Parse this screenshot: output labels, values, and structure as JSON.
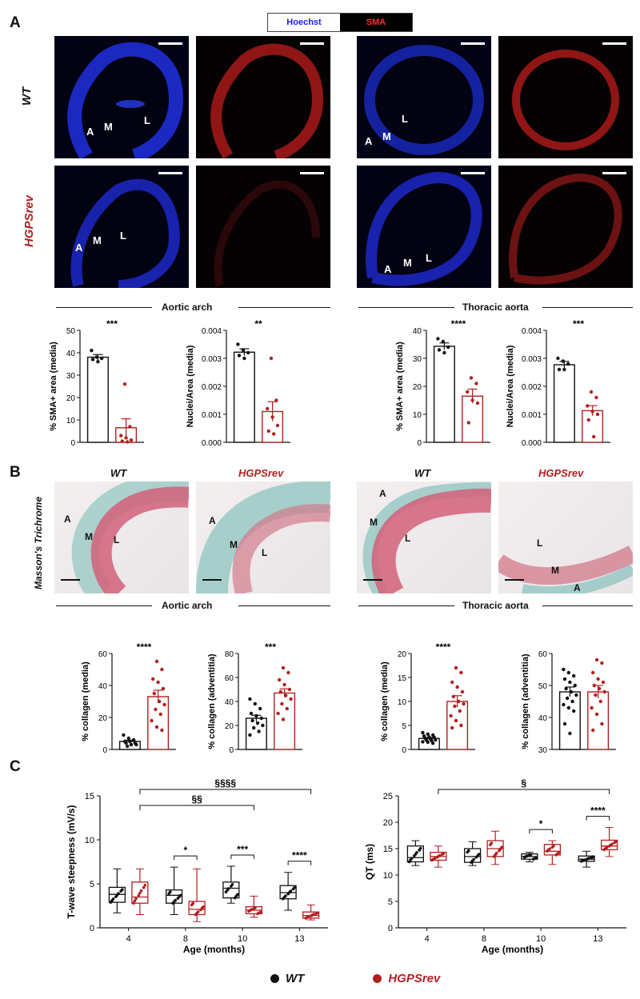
{
  "panelA": {
    "letter": "A",
    "legend": {
      "hoechst": "Hoechst",
      "sma": "SMA"
    },
    "rows": {
      "wt": "WT",
      "hgps": "HGPSrev"
    },
    "layer_labels": {
      "a": "A",
      "m": "M",
      "l": "L"
    },
    "regions": {
      "arch": "Aortic arch",
      "thoracic": "Thoracic aorta"
    },
    "charts": [
      {
        "type": "bar",
        "ylabel": "% SMA+ area (media)",
        "ylim": [
          0,
          50
        ],
        "ticks": [
          "0",
          "10",
          "20",
          "30",
          "40",
          "50"
        ],
        "sig": "***",
        "series": [
          {
            "name": "WT",
            "mean": 38,
            "sem": 1.2,
            "points": [
              41,
              38,
              37.5,
              37,
              36
            ]
          },
          {
            "name": "HGPSrev",
            "mean": 6.5,
            "sem": 4,
            "points": [
              26,
              7,
              3,
              2,
              1,
              0.5,
              0.2
            ]
          }
        ]
      },
      {
        "type": "bar",
        "ylabel": "Nuclei/Area (media)",
        "ylim": [
          0,
          0.004
        ],
        "ticks": [
          "0.000",
          "0.001",
          "0.002",
          "0.003",
          "0.004"
        ],
        "sig": "**",
        "series": [
          {
            "name": "WT",
            "mean": 0.00322,
            "sem": 0.00012,
            "points": [
              0.0035,
              0.0033,
              0.0032,
              0.0031,
              0.003
            ]
          },
          {
            "name": "HGPSrev",
            "mean": 0.0011,
            "sem": 0.00035,
            "points": [
              0.003,
              0.0015,
              0.0012,
              0.0009,
              0.0006,
              0.0004,
              0.0003
            ]
          }
        ]
      },
      {
        "type": "bar",
        "ylabel": "% SMA+ area (media)",
        "ylim": [
          0,
          40
        ],
        "ticks": [
          "0",
          "10",
          "20",
          "30",
          "40"
        ],
        "sig": "****",
        "series": [
          {
            "name": "WT",
            "mean": 34.3,
            "sem": 1.2,
            "points": [
              37,
              36,
              34,
              33,
              32
            ]
          },
          {
            "name": "HGPSrev",
            "mean": 16.5,
            "sem": 2.5,
            "points": [
              23,
              21,
              18,
              15,
              14,
              7
            ]
          }
        ]
      },
      {
        "type": "bar",
        "ylabel": "Nuclei/Area (media)",
        "ylim": [
          0,
          0.004
        ],
        "ticks": [
          "0.000",
          "0.001",
          "0.002",
          "0.003",
          "0.004"
        ],
        "sig": "***",
        "series": [
          {
            "name": "WT",
            "mean": 0.00277,
            "sem": 0.00012,
            "points": [
              0.003,
              0.0029,
              0.0028,
              0.0026,
              0.0026
            ]
          },
          {
            "name": "HGPSrev",
            "mean": 0.00113,
            "sem": 0.00018,
            "points": [
              0.0018,
              0.0016,
              0.0013,
              0.0011,
              0.001,
              0.0008,
              0.0002
            ]
          }
        ]
      }
    ]
  },
  "panelB": {
    "letter": "B",
    "stain": "Masson's Trichrome",
    "col_heads": [
      "WT",
      "HGPSrev",
      "WT",
      "HGPSrev"
    ],
    "layer_labels": {
      "a": "A",
      "m": "M",
      "l": "L"
    },
    "regions": {
      "arch": "Aortic arch",
      "thoracic": "Thoracic aorta"
    },
    "charts": [
      {
        "type": "bar",
        "ylabel": "% collagen (media)",
        "ylim": [
          0,
          60
        ],
        "ticks": [
          "0",
          "20",
          "40",
          "60"
        ],
        "sig": "****",
        "series": [
          {
            "name": "WT",
            "mean": 5,
            "sem": 0.8,
            "points": [
              9,
              7,
              6,
              5,
              5,
              4,
              4,
              3,
              3,
              2
            ]
          },
          {
            "name": "HGPSrev",
            "mean": 33,
            "sem": 4,
            "points": [
              55,
              50,
              44,
              42,
              38,
              35,
              30,
              28,
              25,
              22,
              18,
              14,
              12
            ]
          }
        ]
      },
      {
        "type": "bar",
        "ylabel": "% collagen (adventitia)",
        "ylim": [
          0,
          80
        ],
        "ticks": [
          "0",
          "20",
          "40",
          "60",
          "80"
        ],
        "sig": "***",
        "series": [
          {
            "name": "WT",
            "mean": 26,
            "sem": 2.5,
            "points": [
              42,
              38,
              34,
              30,
              28,
              26,
              24,
              22,
              20,
              18,
              15,
              12
            ]
          },
          {
            "name": "HGPSrev",
            "mean": 47,
            "sem": 3.5,
            "points": [
              68,
              64,
              58,
              54,
              50,
              48,
              45,
              42,
              38,
              34,
              30,
              25
            ]
          }
        ]
      },
      {
        "type": "bar",
        "ylabel": "% collagen (media)",
        "ylim": [
          0,
          20
        ],
        "ticks": [
          "0",
          "5",
          "10",
          "15",
          "20"
        ],
        "sig": "****",
        "series": [
          {
            "name": "WT",
            "mean": 2.3,
            "sem": 0.2,
            "points": [
              3.5,
              3.2,
              3,
              2.8,
              2.6,
              2.5,
              2.3,
              2.2,
              2,
              1.9,
              1.8,
              1.6,
              1.5,
              1.3
            ]
          },
          {
            "name": "HGPSrev",
            "mean": 10,
            "sem": 1.2,
            "points": [
              17,
              16,
              14,
              13,
              12,
              11,
              10,
              9.5,
              9,
              8,
              7,
              6,
              5,
              4.5
            ]
          }
        ]
      },
      {
        "type": "bar",
        "ylabel": "% collagen (adventitia)",
        "ylim": [
          30,
          60
        ],
        "ticks": [
          "30",
          "40",
          "50",
          "60"
        ],
        "sig": "",
        "series": [
          {
            "name": "WT",
            "mean": 48,
            "sem": 1.5,
            "points": [
              55,
              54,
              53,
              52,
              51,
              50,
              49,
              48,
              47,
              46,
              45,
              44,
              43,
              42,
              38,
              35
            ]
          },
          {
            "name": "HGPSrev",
            "mean": 48,
            "sem": 2,
            "points": [
              58,
              57,
              54,
              52,
              51,
              50,
              49,
              48,
              47,
              45,
              43,
              41,
              38,
              36
            ]
          }
        ]
      }
    ]
  },
  "panelC": {
    "letter": "C",
    "charts": [
      {
        "type": "box",
        "ylabel": "T-wave steepness (mV/s)",
        "xlabel": "Age (months)",
        "ylim": [
          0,
          15
        ],
        "ticks": [
          "0",
          "5",
          "10",
          "15"
        ],
        "categories": [
          "4",
          "8",
          "10",
          "13"
        ],
        "series": [
          {
            "name": "WT",
            "boxes": [
              [
                1.7,
                2.9,
                3.8,
                4.6,
                6.7
              ],
              [
                1.5,
                2.8,
                3.7,
                4.3,
                6.9
              ],
              [
                2.8,
                3.4,
                4.5,
                5.2,
                7.0
              ],
              [
                2.0,
                3.3,
                4.0,
                4.8,
                6.3
              ]
            ]
          },
          {
            "name": "HGPSrev",
            "boxes": [
              [
                1.5,
                2.8,
                3.5,
                5.2,
                6.7
              ],
              [
                0.7,
                1.5,
                2.1,
                3.0,
                6.7
              ],
              [
                1.2,
                1.6,
                2.0,
                2.4,
                3.6
              ],
              [
                0.9,
                1.1,
                1.4,
                1.8,
                2.6
              ]
            ]
          }
        ],
        "brackets": [
          {
            "from": 0,
            "to": 3,
            "label": "§§§§"
          },
          {
            "from": 0,
            "to": 2,
            "label": "§§"
          },
          {
            "cat": 1,
            "label": "*"
          },
          {
            "cat": 2,
            "label": "***"
          },
          {
            "cat": 3,
            "label": "****"
          }
        ]
      },
      {
        "type": "box",
        "ylabel": "QT (ms)",
        "xlabel": "Age (months)",
        "ylim": [
          0,
          25
        ],
        "ticks": [
          "0",
          "5",
          "10",
          "15",
          "20",
          "25"
        ],
        "categories": [
          "4",
          "8",
          "10",
          "13"
        ],
        "series": [
          {
            "name": "WT",
            "boxes": [
              [
                11.8,
                12.5,
                13.3,
                15.5,
                16.5
              ],
              [
                11.8,
                12.4,
                13.5,
                15.0,
                16.3
              ],
              [
                12.5,
                13.0,
                13.5,
                14.0,
                14.3
              ],
              [
                11.5,
                12.6,
                13.0,
                13.6,
                14.5
              ]
            ]
          },
          {
            "name": "HGPSrev",
            "boxes": [
              [
                11.5,
                12.8,
                13.5,
                14.3,
                15.5
              ],
              [
                12.0,
                13.5,
                15.0,
                16.5,
                18.3
              ],
              [
                12.0,
                13.8,
                14.5,
                15.8,
                16.5
              ],
              [
                13.5,
                14.8,
                15.5,
                16.6,
                19.0
              ]
            ]
          }
        ],
        "brackets": [
          {
            "from": 0,
            "to": 3,
            "label": "§"
          },
          {
            "cat": 2,
            "label": "*"
          },
          {
            "cat": 3,
            "label": "****"
          }
        ]
      }
    ],
    "legend": {
      "wt": "WT",
      "hgps": "HGPSrev"
    }
  },
  "colors": {
    "wt": "#111111",
    "hgps": "#b21f1f",
    "hoechst": "#1a1aff",
    "sma": "#e02020"
  }
}
